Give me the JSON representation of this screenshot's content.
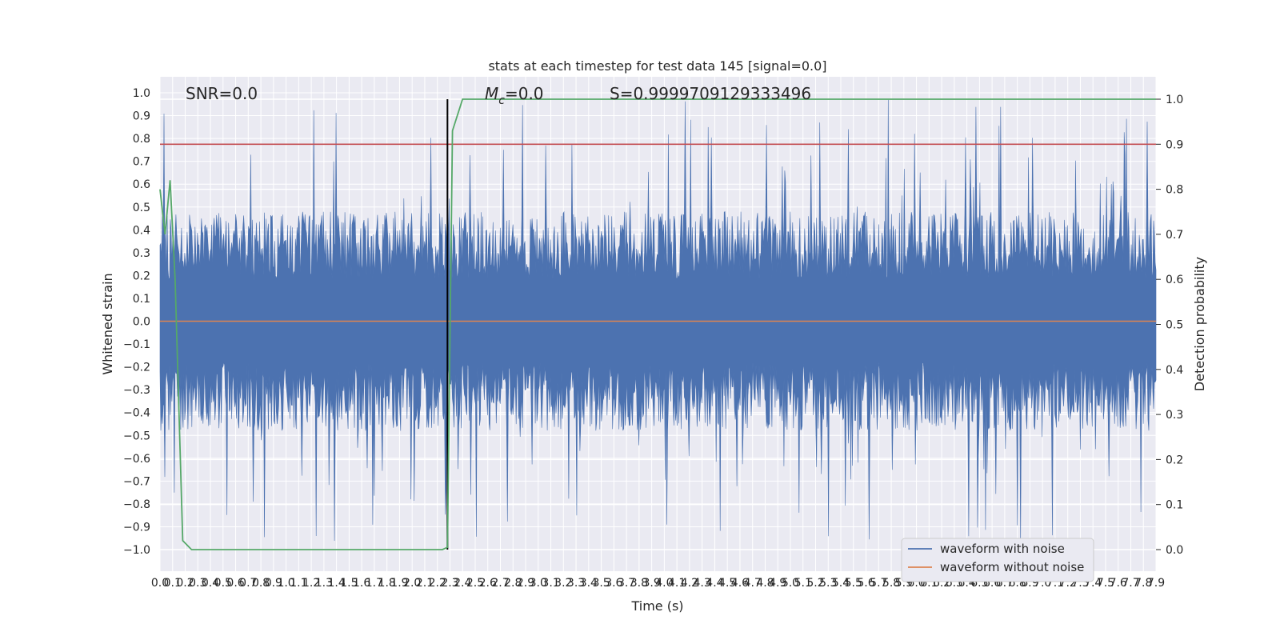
{
  "chart_data": {
    "type": "line",
    "title": "stats at each timestep for test data 145 [signal=0.0]",
    "xlabel": "Time (s)",
    "ylabel": "Whitened strain",
    "ylabel_right": "Detection probability",
    "xlim": [
      0.0,
      7.9
    ],
    "ylim": [
      -1.0,
      1.0
    ],
    "ylim_right": [
      0.0,
      1.0
    ],
    "x_ticks": [
      "0.0",
      "0.1",
      "0.2",
      "0.3",
      "0.4",
      "0.5",
      "0.6",
      "0.7",
      "0.8",
      "0.9",
      "1.0",
      "1.1",
      "1.2",
      "1.3",
      "1.4",
      "1.5",
      "1.6",
      "1.7",
      "1.8",
      "1.9",
      "2.0",
      "2.1",
      "2.2",
      "2.3",
      "2.4",
      "2.5",
      "2.6",
      "2.7",
      "2.8",
      "2.9",
      "3.0",
      "3.1",
      "3.2",
      "3.3",
      "3.4",
      "3.5",
      "3.6",
      "3.7",
      "3.8",
      "3.9",
      "4.0",
      "4.1",
      "4.2",
      "4.3",
      "4.4",
      "4.5",
      "4.6",
      "4.7",
      "4.8",
      "4.9",
      "5.0",
      "5.1",
      "5.2",
      "5.3",
      "5.4",
      "5.5",
      "5.6",
      "5.7",
      "5.8",
      "5.9",
      "6.0",
      "6.1",
      "6.2",
      "6.3",
      "6.4",
      "6.5",
      "6.6",
      "6.7",
      "6.8",
      "6.9",
      "7.0",
      "7.1",
      "7.2",
      "7.3",
      "7.4",
      "7.5",
      "7.6",
      "7.7",
      "7.8",
      "7.9"
    ],
    "y_ticks": [
      "1.0",
      "0.9",
      "0.8",
      "0.7",
      "0.6",
      "0.5",
      "0.4",
      "0.3",
      "0.2",
      "0.1",
      "0.0",
      "−0.1",
      "−0.2",
      "−0.3",
      "−0.4",
      "−0.5",
      "−0.6",
      "−0.7",
      "−0.8",
      "−0.9",
      "−1.0"
    ],
    "y_ticks_right": [
      "1.0",
      "0.9",
      "0.8",
      "0.7",
      "0.6",
      "0.5",
      "0.4",
      "0.3",
      "0.2",
      "0.1",
      "0.0"
    ],
    "annotations": {
      "snr": "SNR=0.0",
      "mc_symbol": "M",
      "mc_sub": "c",
      "mc_value": "=0.0",
      "s": "S=0.9999709129333496"
    },
    "threshold_right": 0.9,
    "marker_time": 2.28,
    "noise_envelope": {
      "typical_max": 0.5,
      "typical_min": -0.5,
      "peak_max": 0.97,
      "peak_min": -0.99
    },
    "detection_probability": {
      "x": [
        0.0,
        0.04,
        0.08,
        0.12,
        0.18,
        0.25,
        2.24,
        2.28,
        2.32,
        2.4,
        7.9
      ],
      "y": [
        0.8,
        0.7,
        0.82,
        0.6,
        0.02,
        0.0,
        0.0,
        0.005,
        0.93,
        1.0,
        1.0
      ]
    },
    "series": [
      {
        "name": "waveform with noise",
        "color": "#4c72b0"
      },
      {
        "name": "waveform without noise",
        "color": "#dd8452"
      },
      {
        "name": "detection probability",
        "color": "#55a868"
      }
    ],
    "legend": [
      {
        "label": "waveform with noise",
        "color": "#4c72b0"
      },
      {
        "label": "waveform without noise",
        "color": "#dd8452"
      }
    ],
    "legend_position": "lower-right",
    "grid": true,
    "colors": {
      "background": "#eaeaf2",
      "grid": "#ffffff",
      "threshold": "#c44e52",
      "marker": "#000000"
    }
  }
}
